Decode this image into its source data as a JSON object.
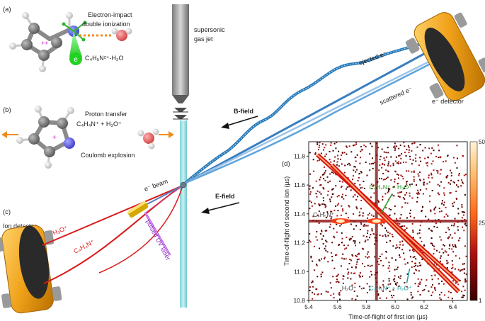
{
  "panels": {
    "a": {
      "letter": "(a)",
      "title_line1": "Electron-impact",
      "title_line2": "double ionization",
      "formula": "C₄H₅N²⁺-H₂O",
      "charge": "++",
      "electron": "e"
    },
    "b": {
      "letter": "(b)",
      "title": "Proton transfer",
      "reaction": "C₄H₄N⁺ + H₃O⁺",
      "subtitle": "Coulomb explosion",
      "charge": "+"
    },
    "c": {
      "letter": "(c)",
      "ion_detector": "Ion detector",
      "h3o_label": "H₃O⁺",
      "c4h4n_label": "C₄H₄N⁺",
      "laser_label": "pulsed UV laser",
      "beam_label": "e⁻ beam"
    },
    "d": {
      "letter": "(d)"
    }
  },
  "apparatus": {
    "jet_line1": "supersonic",
    "jet_line2": "gas jet",
    "ejected": "ejected e⁻",
    "scattered": "scattered e⁻",
    "e_detector": "e⁻ detector",
    "b_field": "B-field",
    "e_field": "E-field"
  },
  "chart_data": {
    "type": "heatmap",
    "title": "",
    "xlabel": "Time-of-flight of first ion (µs)",
    "ylabel": "Time-of-flight of second ion (µs)",
    "xlim": [
      5.4,
      6.5
    ],
    "ylim": [
      10.8,
      11.9
    ],
    "x_ticks": [
      "5.4",
      "5.6",
      "5.8",
      "6.0",
      "6.2",
      "6.4"
    ],
    "y_ticks": [
      "10.8",
      "11.0",
      "11.2",
      "11.4",
      "11.6",
      "11.8"
    ],
    "colorbar": {
      "min": 1,
      "max": 50,
      "ticks": [
        "1",
        "25",
        "50"
      ]
    },
    "annotations": [
      {
        "text": "C₄H₄N⁺ + H₃O⁺",
        "color": "#1f9a1f",
        "x": 5.82,
        "y": 11.57
      },
      {
        "text": "C₄H₅N⁺ + H₂O⁺",
        "color": "#1f9a9a",
        "x": 5.82,
        "y": 10.87
      },
      {
        "text": "C₄H₅N⁺",
        "color": "#333333",
        "x": 5.43,
        "y": 11.38
      },
      {
        "text": "H₂O⁺",
        "color": "#333333",
        "x": 5.63,
        "y": 10.87
      }
    ],
    "lines": [
      {
        "name": "C4H4N+ + H3O+",
        "from": [
          5.46,
          11.81
        ],
        "to": [
          6.44,
          10.93
        ]
      },
      {
        "name": "C4H5N+ + H2O+",
        "from": [
          5.56,
          11.74
        ],
        "to": [
          6.44,
          10.86
        ]
      }
    ],
    "hot_spots": [
      {
        "name": "C4H5N+ line",
        "x": 5.62,
        "y": 11.35
      },
      {
        "name": "H2O+ line",
        "x": 5.87,
        "y": 11.35
      }
    ]
  }
}
